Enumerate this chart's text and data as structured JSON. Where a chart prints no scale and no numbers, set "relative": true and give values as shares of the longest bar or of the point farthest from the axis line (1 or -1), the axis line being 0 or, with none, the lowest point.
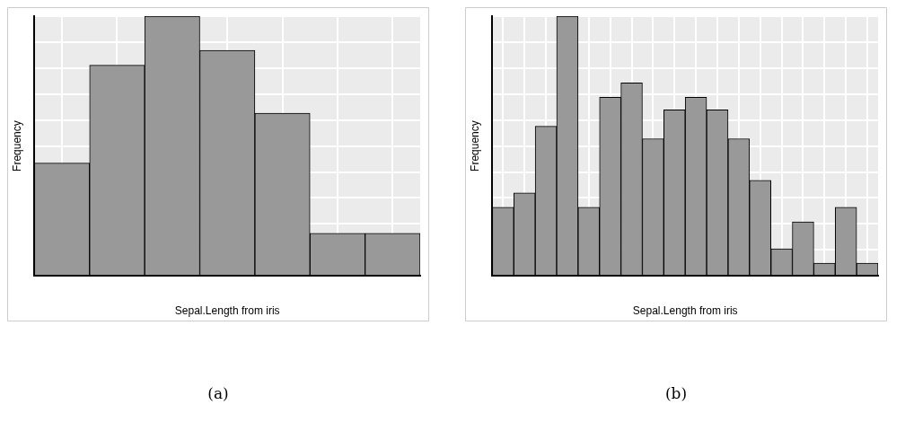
{
  "chart_data": [
    {
      "type": "bar",
      "relative": true,
      "xlabel": "Sepal.Length from iris",
      "ylabel": "Frequency",
      "categories": [
        null,
        null,
        null,
        null,
        null,
        null,
        null
      ],
      "color": "#999999",
      "values": [
        0.434,
        0.811,
        1,
        0.868,
        0.626,
        0.164,
        0.164
      ],
      "grid": true,
      "legend": false,
      "annotations": [
        "(a)"
      ]
    },
    {
      "type": "bar",
      "relative": true,
      "xlabel": "Sepal.Length from iris",
      "ylabel": "Frequency",
      "categories": [
        null,
        null,
        null,
        null,
        null,
        null,
        null,
        null,
        null,
        null,
        null,
        null,
        null,
        null,
        null,
        null,
        null,
        null
      ],
      "color": "#999999",
      "values": [
        0.264,
        0.319,
        0.576,
        1,
        0.264,
        0.688,
        0.743,
        0.528,
        0.639,
        0.688,
        0.639,
        0.528,
        0.368,
        0.104,
        0.208,
        0.049,
        0.264,
        0.049
      ],
      "grid": true,
      "legend": false,
      "annotations": [
        "(b)"
      ]
    }
  ]
}
